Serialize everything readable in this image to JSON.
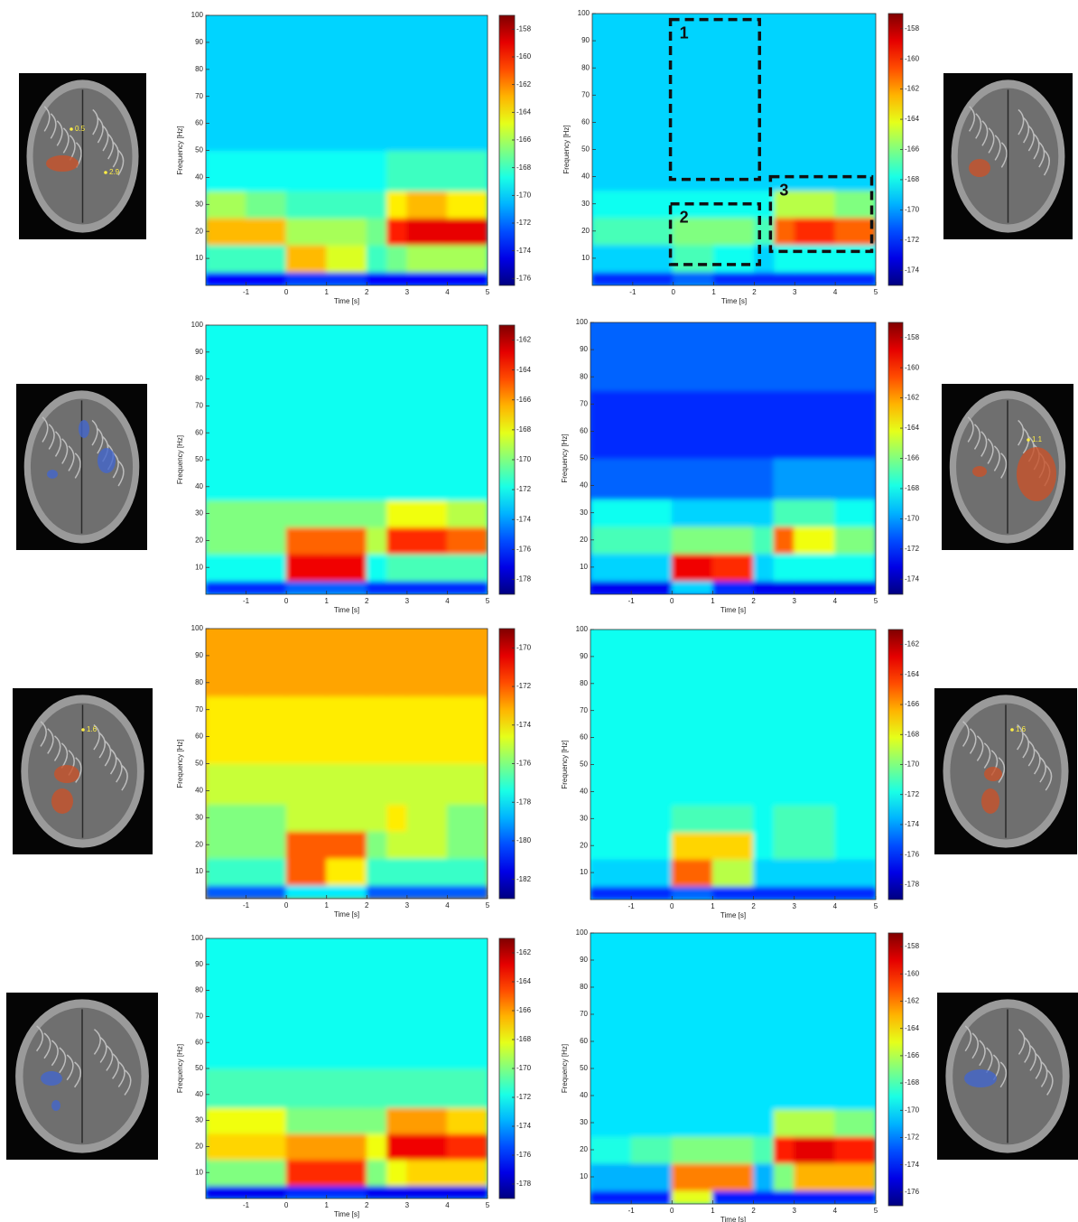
{
  "chart_data": [
    {
      "type": "spectrogram",
      "xlabel": "Time [s]",
      "ylabel": "Frequency [Hz]",
      "colormap": "jet",
      "xlim": [
        -2,
        5
      ],
      "ylim": [
        0,
        100
      ],
      "xticks": [
        -1,
        0,
        1,
        2,
        3,
        4,
        5
      ],
      "yticks": [
        10,
        20,
        30,
        40,
        50,
        60,
        70,
        80,
        90,
        100
      ],
      "clim": [
        -176.5,
        -157
      ],
      "cticks": [
        -158,
        -160,
        -162,
        -164,
        -166,
        -168,
        -170,
        -172,
        -174,
        -176
      ],
      "xbins": [
        -2,
        -1,
        0,
        1,
        2,
        2.5,
        3,
        4,
        5
      ],
      "ybins": [
        0,
        5,
        15,
        25,
        35,
        50,
        75,
        100
      ],
      "z": [
        [
          -174,
          -174,
          -173,
          -173,
          -174,
          -174,
          -174,
          -174
        ],
        [
          -168,
          -168,
          -163,
          -165,
          -168,
          -167,
          -166,
          -166
        ],
        [
          -163,
          -163,
          -166,
          -166,
          -167,
          -160,
          -159,
          -159
        ],
        [
          -166,
          -167,
          -168,
          -168,
          -168,
          -164,
          -163,
          -164
        ],
        [
          -169,
          -169,
          -169,
          -169,
          -169,
          -168,
          -168,
          -168
        ],
        [
          -170,
          -170,
          -170,
          -170,
          -170,
          -170,
          -170,
          -170
        ],
        [
          -170,
          -170,
          -170,
          -170,
          -170,
          -170,
          -170,
          -170
        ]
      ]
    },
    {
      "type": "spectrogram",
      "xlabel": "Time [s]",
      "ylabel": "Frequency [Hz]",
      "colormap": "jet",
      "xlim": [
        -2,
        5
      ],
      "ylim": [
        0,
        100
      ],
      "xticks": [
        -1,
        0,
        1,
        2,
        3,
        4,
        5
      ],
      "yticks": [
        10,
        20,
        30,
        40,
        50,
        60,
        70,
        80,
        90,
        100
      ],
      "clim": [
        -175,
        -157
      ],
      "cticks": [
        -158,
        -160,
        -162,
        -164,
        -166,
        -168,
        -170,
        -172,
        -174
      ],
      "xbins": [
        -2,
        -1,
        0,
        1,
        2,
        2.5,
        3,
        4,
        5
      ],
      "ybins": [
        0,
        5,
        15,
        25,
        35,
        50,
        75,
        100
      ],
      "z": [
        [
          -172,
          -172,
          -171,
          -172,
          -172,
          -172,
          -172,
          -172
        ],
        [
          -169,
          -169,
          -167,
          -168,
          -169,
          -168,
          -168,
          -168
        ],
        [
          -167,
          -167,
          -166,
          -166,
          -167,
          -161,
          -160,
          -161
        ],
        [
          -168,
          -168,
          -168,
          -168,
          -168,
          -165,
          -165,
          -166
        ],
        [
          -169,
          -169,
          -169,
          -169,
          -169,
          -169,
          -169,
          -169
        ],
        [
          -169,
          -169,
          -169,
          -169,
          -169,
          -169,
          -169,
          -169
        ],
        [
          -169,
          -169,
          -169,
          -169,
          -169,
          -169,
          -169,
          -169
        ]
      ],
      "boxes": [
        {
          "label": "1",
          "x": [
            -0.07,
            2.13
          ],
          "y": [
            39,
            97.8
          ]
        },
        {
          "label": "2",
          "x": [
            -0.07,
            2.13
          ],
          "y": [
            7.7,
            30
          ]
        },
        {
          "label": "3",
          "x": [
            2.4,
            4.9
          ],
          "y": [
            12.5,
            40
          ]
        }
      ]
    },
    {
      "type": "spectrogram",
      "xlabel": "Time [s]",
      "ylabel": "Frequency [Hz]",
      "colormap": "jet",
      "xlim": [
        -2,
        5
      ],
      "ylim": [
        0,
        100
      ],
      "xticks": [
        -1,
        0,
        1,
        2,
        3,
        4,
        5
      ],
      "yticks": [
        10,
        20,
        30,
        40,
        50,
        60,
        70,
        80,
        90,
        100
      ],
      "clim": [
        -179,
        -161
      ],
      "cticks": [
        -162,
        -164,
        -166,
        -168,
        -170,
        -172,
        -174,
        -176,
        -178
      ],
      "xbins": [
        -2,
        -1,
        0,
        1,
        2,
        2.5,
        3,
        4,
        5
      ],
      "ybins": [
        0,
        5,
        15,
        25,
        35,
        50,
        75,
        100
      ],
      "z": [
        [
          -176,
          -176,
          -175,
          -175,
          -176,
          -176,
          -176,
          -176
        ],
        [
          -172,
          -172,
          -163,
          -163,
          -172,
          -171,
          -171,
          -171
        ],
        [
          -170,
          -170,
          -165,
          -165,
          -169,
          -164,
          -164,
          -165
        ],
        [
          -170,
          -170,
          -170,
          -170,
          -170,
          -168,
          -168,
          -169
        ],
        [
          -172,
          -172,
          -172,
          -172,
          -172,
          -172,
          -172,
          -172
        ],
        [
          -172,
          -172,
          -172,
          -172,
          -172,
          -172,
          -172,
          -172
        ],
        [
          -172,
          -172,
          -172,
          -172,
          -172,
          -172,
          -172,
          -172
        ]
      ]
    },
    {
      "type": "spectrogram",
      "xlabel": "Time [s]",
      "ylabel": "Frequency [Hz]",
      "colormap": "jet",
      "xlim": [
        -2,
        5
      ],
      "ylim": [
        0,
        100
      ],
      "xticks": [
        -1,
        0,
        1,
        2,
        3,
        4,
        5
      ],
      "yticks": [
        10,
        20,
        30,
        40,
        50,
        60,
        70,
        80,
        90,
        100
      ],
      "clim": [
        -175,
        -157
      ],
      "cticks": [
        -158,
        -160,
        -162,
        -164,
        -166,
        -168,
        -170,
        -172,
        -174
      ],
      "xbins": [
        -2,
        -1,
        0,
        1,
        2,
        2.5,
        3,
        4,
        5
      ],
      "ybins": [
        0,
        5,
        15,
        25,
        35,
        50,
        75,
        100
      ],
      "z": [
        [
          -173,
          -173,
          -169,
          -172,
          -173,
          -173,
          -173,
          -173
        ],
        [
          -169,
          -169,
          -159,
          -160,
          -169,
          -168,
          -168,
          -168
        ],
        [
          -167,
          -167,
          -166,
          -166,
          -167,
          -161,
          -164,
          -166
        ],
        [
          -168,
          -168,
          -169,
          -169,
          -169,
          -167,
          -167,
          -168
        ],
        [
          -171,
          -171,
          -171,
          -171,
          -171,
          -170,
          -170,
          -170
        ],
        [
          -172,
          -172,
          -172,
          -172,
          -172,
          -172,
          -172,
          -172
        ],
        [
          -171,
          -171,
          -171,
          -171,
          -171,
          -171,
          -171,
          -171
        ]
      ]
    },
    {
      "type": "spectrogram",
      "xlabel": "Time [s]",
      "ylabel": "Frequency [Hz]",
      "colormap": "jet",
      "xlim": [
        -2,
        5
      ],
      "ylim": [
        0,
        100
      ],
      "xticks": [
        -1,
        0,
        1,
        2,
        3,
        4,
        5
      ],
      "yticks": [
        10,
        20,
        30,
        40,
        50,
        60,
        70,
        80,
        90,
        100
      ],
      "clim": [
        -183,
        -169
      ],
      "cticks": [
        -170,
        -172,
        -174,
        -176,
        -178,
        -180,
        -182
      ],
      "xbins": [
        -2,
        -1,
        0,
        1,
        2,
        2.5,
        3,
        4,
        5
      ],
      "ybins": [
        0,
        5,
        15,
        25,
        35,
        50,
        75,
        100
      ],
      "z": [
        [
          -180,
          -180,
          -178,
          -178,
          -180,
          -180,
          -180,
          -180
        ],
        [
          -177,
          -177,
          -172,
          -174,
          -177,
          -177,
          -177,
          -177
        ],
        [
          -176,
          -176,
          -172,
          -172,
          -176,
          -175,
          -175,
          -176
        ],
        [
          -176,
          -176,
          -175,
          -175,
          -175,
          -174,
          -175,
          -176
        ],
        [
          -175,
          -175,
          -175,
          -175,
          -175,
          -175,
          -175,
          -175
        ],
        [
          -174,
          -174,
          -174,
          -174,
          -174,
          -174,
          -174,
          -174
        ],
        [
          -173,
          -173,
          -173,
          -173,
          -173,
          -173,
          -173,
          -173
        ]
      ]
    },
    {
      "type": "spectrogram",
      "xlabel": "Time [s]",
      "ylabel": "Frequency [Hz]",
      "colormap": "jet",
      "xlim": [
        -2,
        5
      ],
      "ylim": [
        0,
        100
      ],
      "xticks": [
        -1,
        0,
        1,
        2,
        3,
        4,
        5
      ],
      "yticks": [
        10,
        20,
        30,
        40,
        50,
        60,
        70,
        80,
        90,
        100
      ],
      "clim": [
        -179,
        -161
      ],
      "cticks": [
        -162,
        -164,
        -166,
        -168,
        -170,
        -172,
        -174,
        -176,
        -178
      ],
      "xbins": [
        -2,
        -1,
        0,
        1,
        2,
        2.5,
        3,
        4,
        5
      ],
      "ybins": [
        0,
        5,
        15,
        25,
        35,
        50,
        75,
        100
      ],
      "z": [
        [
          -176,
          -176,
          -175,
          -176,
          -176,
          -176,
          -176,
          -176
        ],
        [
          -173,
          -173,
          -165,
          -169,
          -173,
          -173,
          -173,
          -173
        ],
        [
          -172,
          -172,
          -167,
          -167,
          -172,
          -171,
          -171,
          -172
        ],
        [
          -172,
          -172,
          -171,
          -171,
          -172,
          -171,
          -171,
          -172
        ],
        [
          -172,
          -172,
          -172,
          -172,
          -172,
          -172,
          -172,
          -172
        ],
        [
          -172,
          -172,
          -172,
          -172,
          -172,
          -172,
          -172,
          -172
        ],
        [
          -172,
          -172,
          -172,
          -172,
          -172,
          -172,
          -172,
          -172
        ]
      ]
    },
    {
      "type": "spectrogram",
      "xlabel": "Time [s]",
      "ylabel": "Frequency [Hz]",
      "colormap": "jet",
      "xlim": [
        -2,
        5
      ],
      "ylim": [
        0,
        100
      ],
      "xticks": [
        -1,
        0,
        1,
        2,
        3,
        4,
        5
      ],
      "yticks": [
        10,
        20,
        30,
        40,
        50,
        60,
        70,
        80,
        90,
        100
      ],
      "clim": [
        -179,
        -161
      ],
      "cticks": [
        -162,
        -164,
        -166,
        -168,
        -170,
        -172,
        -174,
        -176,
        -178
      ],
      "xbins": [
        -2,
        -1,
        0,
        1,
        2,
        2.5,
        3,
        4,
        5
      ],
      "ybins": [
        0,
        5,
        15,
        25,
        35,
        50,
        75,
        100
      ],
      "z": [
        [
          -177,
          -177,
          -176,
          -176,
          -177,
          -177,
          -177,
          -177
        ],
        [
          -170,
          -170,
          -164,
          -164,
          -170,
          -168,
          -167,
          -167
        ],
        [
          -167,
          -167,
          -166,
          -166,
          -168,
          -163,
          -163,
          -164
        ],
        [
          -168,
          -168,
          -170,
          -170,
          -170,
          -166,
          -166,
          -167
        ],
        [
          -171,
          -171,
          -171,
          -171,
          -171,
          -171,
          -171,
          -171
        ],
        [
          -172,
          -172,
          -172,
          -172,
          -172,
          -172,
          -172,
          -172
        ],
        [
          -172,
          -172,
          -172,
          -172,
          -172,
          -172,
          -172,
          -172
        ]
      ]
    },
    {
      "type": "spectrogram",
      "xlabel": "Time [s]",
      "ylabel": "Frequency [Hz]",
      "colormap": "jet",
      "xlim": [
        -2,
        5
      ],
      "ylim": [
        0,
        100
      ],
      "xticks": [
        -1,
        0,
        1,
        2,
        3,
        4,
        5
      ],
      "yticks": [
        10,
        20,
        30,
        40,
        50,
        60,
        70,
        80,
        90,
        100
      ],
      "clim": [
        -177,
        -157
      ],
      "cticks": [
        -158,
        -160,
        -162,
        -164,
        -166,
        -168,
        -170,
        -172,
        -174,
        -176
      ],
      "xbins": [
        -2,
        -1,
        0,
        1,
        2,
        2.5,
        3,
        4,
        5
      ],
      "ybins": [
        0,
        5,
        15,
        25,
        35,
        50,
        75,
        100
      ],
      "z": [
        [
          -174,
          -174,
          -165,
          -174,
          -174,
          -174,
          -174,
          -174
        ],
        [
          -171,
          -171,
          -162,
          -162,
          -171,
          -167,
          -163,
          -163
        ],
        [
          -169,
          -168,
          -167,
          -167,
          -168,
          -160,
          -159,
          -160
        ],
        [
          -170,
          -170,
          -170,
          -170,
          -170,
          -166,
          -166,
          -167
        ],
        [
          -170,
          -170,
          -170,
          -170,
          -170,
          -170,
          -170,
          -170
        ],
        [
          -170,
          -170,
          -170,
          -170,
          -170,
          -170,
          -170,
          -170
        ],
        [
          -170,
          -170,
          -170,
          -170,
          -170,
          -170,
          -170,
          -170
        ]
      ]
    }
  ],
  "brain_images": [
    {
      "labels": [
        "0.5",
        "2.9"
      ]
    },
    {
      "labels": []
    },
    {
      "labels": []
    },
    {
      "labels": [
        "1.1"
      ]
    },
    {
      "labels": [
        "1.6"
      ]
    },
    {
      "labels": [
        "1.6"
      ]
    },
    {
      "labels": []
    },
    {
      "labels": []
    }
  ]
}
